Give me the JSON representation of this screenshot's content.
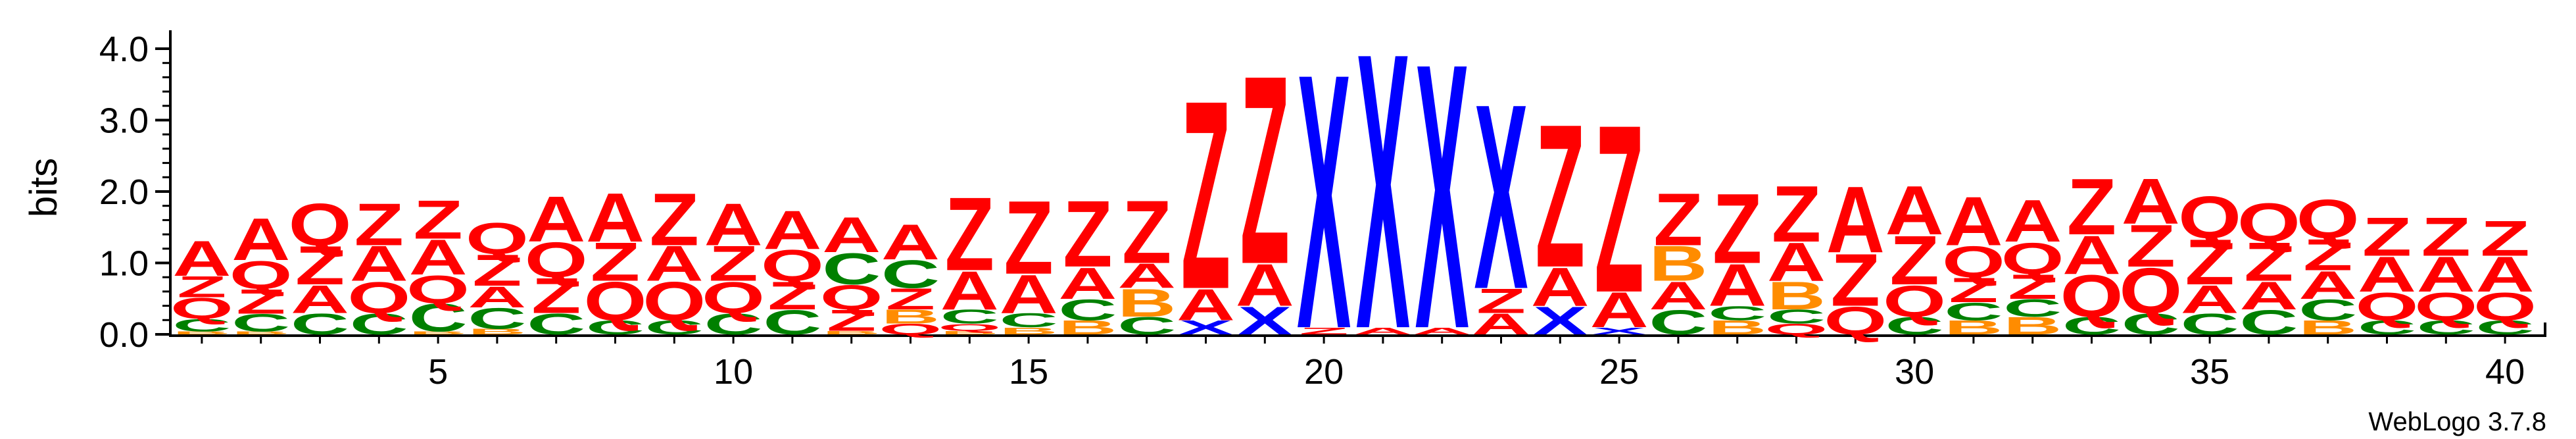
{
  "chart_data": {
    "type": "sequence-logo",
    "ylabel": "bits",
    "ylim": [
      0,
      4.0
    ],
    "yticks": [
      "0.0",
      "1.0",
      "2.0",
      "3.0",
      "4.0"
    ],
    "xticks": [
      "5",
      "10",
      "15",
      "20",
      "25",
      "30",
      "35",
      "40"
    ],
    "credit": "WebLogo 3.7.8",
    "colors": {
      "A": "#ff0000",
      "Q": "#ff0000",
      "Z": "#ff0000",
      "C": "#008000",
      "B": "#ff8c00",
      "X": "#0000ff"
    },
    "positions": [
      {
        "pos": 1,
        "stack": [
          [
            "B",
            0.04
          ],
          [
            "C",
            0.18
          ],
          [
            "Q",
            0.3
          ],
          [
            "Z",
            0.3
          ],
          [
            "A",
            0.5
          ]
        ]
      },
      {
        "pos": 2,
        "stack": [
          [
            "B",
            0.04
          ],
          [
            "C",
            0.25
          ],
          [
            "Z",
            0.35
          ],
          [
            "Q",
            0.4
          ],
          [
            "A",
            0.6
          ]
        ]
      },
      {
        "pos": 3,
        "stack": [
          [
            "C",
            0.3
          ],
          [
            "A",
            0.4
          ],
          [
            "Z",
            0.55
          ],
          [
            "Q",
            0.6
          ]
        ]
      },
      {
        "pos": 4,
        "stack": [
          [
            "C",
            0.3
          ],
          [
            "Q",
            0.45
          ],
          [
            "A",
            0.5
          ],
          [
            "Z",
            0.6
          ]
        ]
      },
      {
        "pos": 5,
        "stack": [
          [
            "B",
            0.04
          ],
          [
            "C",
            0.4
          ],
          [
            "Q",
            0.4
          ],
          [
            "A",
            0.5
          ],
          [
            "Z",
            0.55
          ]
        ]
      },
      {
        "pos": 6,
        "stack": [
          [
            "B",
            0.08
          ],
          [
            "C",
            0.3
          ],
          [
            "A",
            0.3
          ],
          [
            "Z",
            0.45
          ],
          [
            "Q",
            0.45
          ]
        ]
      },
      {
        "pos": 7,
        "stack": [
          [
            "C",
            0.3
          ],
          [
            "Z",
            0.5
          ],
          [
            "Q",
            0.5
          ],
          [
            "A",
            0.65
          ]
        ]
      },
      {
        "pos": 8,
        "stack": [
          [
            "C",
            0.2
          ],
          [
            "Q",
            0.55
          ],
          [
            "Z",
            0.55
          ],
          [
            "A",
            0.7
          ]
        ]
      },
      {
        "pos": 9,
        "stack": [
          [
            "C",
            0.2
          ],
          [
            "Q",
            0.55
          ],
          [
            "A",
            0.5
          ],
          [
            "Z",
            0.75
          ]
        ]
      },
      {
        "pos": 10,
        "stack": [
          [
            "C",
            0.3
          ],
          [
            "Q",
            0.45
          ],
          [
            "Z",
            0.5
          ],
          [
            "A",
            0.6
          ]
        ]
      },
      {
        "pos": 11,
        "stack": [
          [
            "C",
            0.35
          ],
          [
            "Z",
            0.4
          ],
          [
            "Q",
            0.45
          ],
          [
            "A",
            0.55
          ]
        ]
      },
      {
        "pos": 12,
        "stack": [
          [
            "B",
            0.05
          ],
          [
            "Z",
            0.3
          ],
          [
            "Q",
            0.35
          ],
          [
            "C",
            0.45
          ],
          [
            "A",
            0.5
          ]
        ]
      },
      {
        "pos": 13,
        "stack": [
          [
            "Q",
            0.15
          ],
          [
            "B",
            0.2
          ],
          [
            "Z",
            0.3
          ],
          [
            "C",
            0.4
          ],
          [
            "A",
            0.5
          ]
        ]
      },
      {
        "pos": 14,
        "stack": [
          [
            "B",
            0.05
          ],
          [
            "Q",
            0.1
          ],
          [
            "C",
            0.2
          ],
          [
            "A",
            0.55
          ],
          [
            "Z",
            1.05
          ]
        ]
      },
      {
        "pos": 15,
        "stack": [
          [
            "B",
            0.1
          ],
          [
            "C",
            0.2
          ],
          [
            "A",
            0.55
          ],
          [
            "Z",
            1.05
          ]
        ]
      },
      {
        "pos": 16,
        "stack": [
          [
            "B",
            0.2
          ],
          [
            "C",
            0.3
          ],
          [
            "A",
            0.45
          ],
          [
            "Z",
            0.95
          ]
        ]
      },
      {
        "pos": 17,
        "stack": [
          [
            "C",
            0.25
          ],
          [
            "B",
            0.4
          ],
          [
            "A",
            0.35
          ],
          [
            "Z",
            0.9
          ]
        ]
      },
      {
        "pos": 18,
        "stack": [
          [
            "X",
            0.2
          ],
          [
            "A",
            0.45
          ],
          [
            "Z",
            2.7
          ]
        ]
      },
      {
        "pos": 19,
        "stack": [
          [
            "X",
            0.4
          ],
          [
            "A",
            0.6
          ],
          [
            "Z",
            2.7
          ]
        ]
      },
      {
        "pos": 20,
        "stack": [
          [
            "Z",
            0.1
          ],
          [
            "X",
            3.65
          ]
        ]
      },
      {
        "pos": 21,
        "stack": [
          [
            "A",
            0.1
          ],
          [
            "X",
            3.95
          ]
        ]
      },
      {
        "pos": 22,
        "stack": [
          [
            "A",
            0.1
          ],
          [
            "X",
            3.8
          ]
        ]
      },
      {
        "pos": 23,
        "stack": [
          [
            "A",
            0.3
          ],
          [
            "Z",
            0.35
          ],
          [
            "X",
            2.65
          ]
        ]
      },
      {
        "pos": 24,
        "stack": [
          [
            "X",
            0.4
          ],
          [
            "A",
            0.55
          ],
          [
            "Z",
            2.05
          ]
        ]
      },
      {
        "pos": 25,
        "stack": [
          [
            "X",
            0.1
          ],
          [
            "A",
            0.5
          ],
          [
            "Z",
            2.4
          ]
        ]
      },
      {
        "pos": 26,
        "stack": [
          [
            "C",
            0.35
          ],
          [
            "A",
            0.4
          ],
          [
            "B",
            0.5
          ],
          [
            "Z",
            0.75
          ]
        ]
      },
      {
        "pos": 27,
        "stack": [
          [
            "B",
            0.2
          ],
          [
            "C",
            0.2
          ],
          [
            "A",
            0.6
          ],
          [
            "Z",
            1.0
          ]
        ]
      },
      {
        "pos": 28,
        "stack": [
          [
            "Q",
            0.15
          ],
          [
            "C",
            0.2
          ],
          [
            "B",
            0.4
          ],
          [
            "A",
            0.55
          ],
          [
            "Z",
            0.8
          ]
        ]
      },
      {
        "pos": 29,
        "stack": [
          [
            "Q",
            0.4
          ],
          [
            "Z",
            0.75
          ],
          [
            "A",
            0.95
          ]
        ]
      },
      {
        "pos": 30,
        "stack": [
          [
            "C",
            0.25
          ],
          [
            "Q",
            0.45
          ],
          [
            "Z",
            0.7
          ],
          [
            "A",
            0.7
          ]
        ]
      },
      {
        "pos": 31,
        "stack": [
          [
            "B",
            0.2
          ],
          [
            "C",
            0.25
          ],
          [
            "Z",
            0.35
          ],
          [
            "Q",
            0.45
          ],
          [
            "A",
            0.7
          ]
        ]
      },
      {
        "pos": 32,
        "stack": [
          [
            "B",
            0.25
          ],
          [
            "C",
            0.25
          ],
          [
            "Z",
            0.35
          ],
          [
            "Q",
            0.45
          ],
          [
            "A",
            0.6
          ]
        ]
      },
      {
        "pos": 33,
        "stack": [
          [
            "C",
            0.25
          ],
          [
            "Q",
            0.6
          ],
          [
            "A",
            0.55
          ],
          [
            "Z",
            0.8
          ]
        ]
      },
      {
        "pos": 34,
        "stack": [
          [
            "C",
            0.3
          ],
          [
            "Q",
            0.65
          ],
          [
            "Z",
            0.6
          ],
          [
            "A",
            0.65
          ]
        ]
      },
      {
        "pos": 35,
        "stack": [
          [
            "C",
            0.3
          ],
          [
            "A",
            0.4
          ],
          [
            "Z",
            0.65
          ],
          [
            "Q",
            0.6
          ]
        ]
      },
      {
        "pos": 36,
        "stack": [
          [
            "C",
            0.35
          ],
          [
            "A",
            0.4
          ],
          [
            "Z",
            0.55
          ],
          [
            "Q",
            0.55
          ]
        ]
      },
      {
        "pos": 37,
        "stack": [
          [
            "B",
            0.2
          ],
          [
            "C",
            0.3
          ],
          [
            "A",
            0.4
          ],
          [
            "Z",
            0.45
          ],
          [
            "Q",
            0.55
          ]
        ]
      },
      {
        "pos": 38,
        "stack": [
          [
            "C",
            0.2
          ],
          [
            "Q",
            0.4
          ],
          [
            "A",
            0.5
          ],
          [
            "Z",
            0.55
          ]
        ]
      },
      {
        "pos": 39,
        "stack": [
          [
            "C",
            0.2
          ],
          [
            "Q",
            0.4
          ],
          [
            "A",
            0.5
          ],
          [
            "Z",
            0.55
          ]
        ]
      },
      {
        "pos": 40,
        "stack": [
          [
            "C",
            0.2
          ],
          [
            "Q",
            0.4
          ],
          [
            "A",
            0.5
          ],
          [
            "Z",
            0.5
          ]
        ]
      }
    ]
  }
}
